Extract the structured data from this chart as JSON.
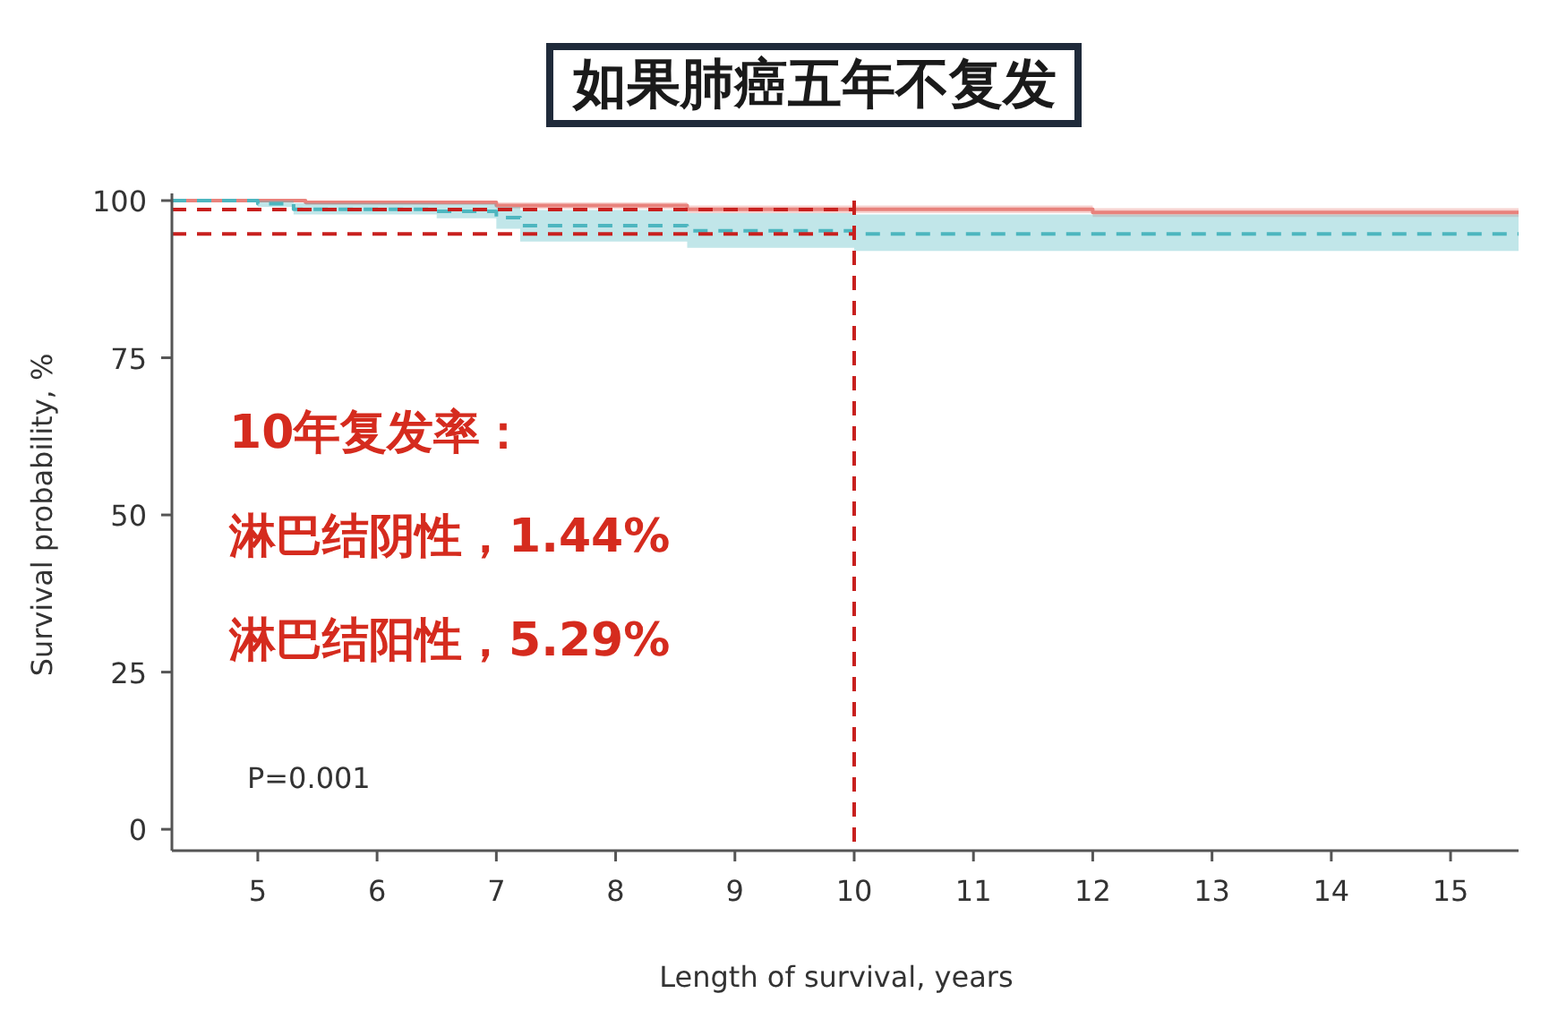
{
  "chart_data": {
    "type": "step",
    "title": "如果肺癌五年不复发",
    "xlabel": "Length of survival, years",
    "ylabel": "Survival probability, %",
    "xlim": [
      4.28,
      15.57
    ],
    "xticks": [
      5,
      6,
      7,
      8,
      9,
      10,
      11,
      12,
      13,
      14,
      15
    ],
    "ylim": [
      -3.4,
      100
    ],
    "yticks": [
      0,
      25,
      50,
      75,
      100
    ],
    "series": [
      {
        "color": "#e8827c",
        "line_style": "solid",
        "x": [
          4.28,
          5.4,
          7.0,
          8.6,
          12.0,
          15.57
        ],
        "values": [
          100,
          99.7,
          99.2,
          98.6,
          98.1,
          98.1
        ],
        "lower": [
          100,
          99.3,
          98.7,
          98.0,
          97.4,
          97.4
        ],
        "upper": [
          100,
          100,
          99.7,
          99.2,
          98.8,
          98.8
        ]
      },
      {
        "color": "#4db6bf",
        "line_style": "dashed",
        "x": [
          4.28,
          5.0,
          5.3,
          6.5,
          7.0,
          7.2,
          8.6,
          10.0,
          15.57
        ],
        "values": [
          100,
          99.5,
          98.6,
          98.3,
          97.3,
          96.0,
          95.2,
          94.7,
          94.7
        ],
        "lower": [
          100,
          99.0,
          97.8,
          97.2,
          95.5,
          93.5,
          92.5,
          92.0,
          92.0
        ],
        "upper": [
          100,
          100,
          99.6,
          99.5,
          99.0,
          98.5,
          98.0,
          97.8,
          97.8
        ]
      }
    ],
    "ref_lines": [
      {
        "axis": "x",
        "value": 10,
        "color": "#c8201e",
        "line_style": "dashed"
      },
      {
        "axis": "y",
        "value": 98.56,
        "color": "#c8201e",
        "line_style": "dashed"
      },
      {
        "axis": "y",
        "value": 94.71,
        "color": "#c8201e",
        "line_style": "dashed"
      }
    ],
    "annotations": [
      "10年复发率：",
      "淋巴结阴性，1.44%",
      "淋巴结阳性，5.29%",
      "P=0.001"
    ]
  }
}
